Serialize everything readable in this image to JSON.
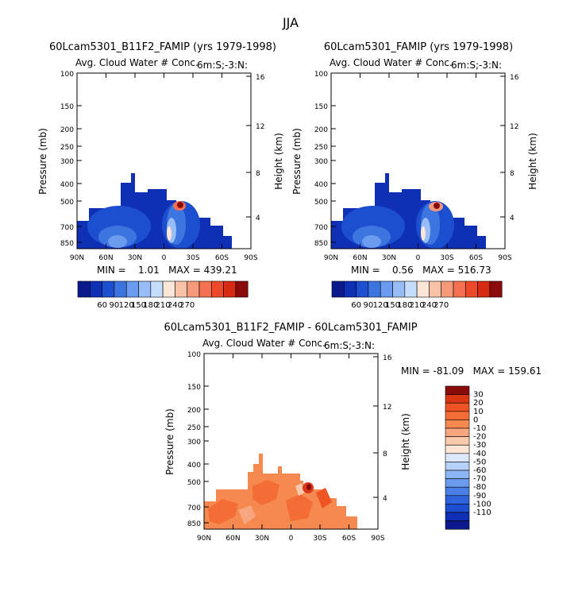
{
  "page_title": "JJA",
  "colors": {
    "main_scale": [
      "#0a1a8c",
      "#0f2fb4",
      "#1b4fd0",
      "#3d75e0",
      "#6a9bee",
      "#98bdf6",
      "#c6dcfb",
      "#fbe6d7",
      "#f9c2a8",
      "#f6997b",
      "#f37050",
      "#ee4a2a",
      "#d62a14",
      "#8b0b0b"
    ],
    "diff_scale": [
      "#0a1a8c",
      "#0f2fb4",
      "#1b4fd0",
      "#2e63dc",
      "#4a80e6",
      "#6a9bee",
      "#8cb5f4",
      "#b6d1fa",
      "#dce9fd",
      "#fde6d5",
      "#fbc9ab",
      "#f8a680",
      "#f6894f",
      "#f36d35",
      "#ef5522",
      "#dc3715",
      "#8b0b0b"
    ]
  },
  "chart_data": [
    {
      "type": "heatmap",
      "title": "60Lcam5301_B11F2_FAMIP (yrs 1979-1998)",
      "subtitle": "Avg. Cloud Water # Conc.",
      "subtitle_right": "6m:S;-3:N:",
      "ylabel": "Pressure (mb)",
      "y2label": "Height (km)",
      "xticks": [
        "90N",
        "60N",
        "30N",
        "0",
        "30S",
        "60S",
        "90S"
      ],
      "yticks": [
        "100",
        "150",
        "200",
        "250",
        "300",
        "400",
        "500",
        "700",
        "850"
      ],
      "y2ticks": [
        "16",
        "12",
        "8",
        "4"
      ],
      "stats": "MIN =    1.01   MAX = 439.21",
      "colorbar_labels": [
        "60",
        "90",
        "120",
        "150",
        "180",
        "210",
        "240",
        "270"
      ],
      "colorbar_position": "bottom"
    },
    {
      "type": "heatmap",
      "title": "60Lcam5301_FAMIP (yrs 1979-1998)",
      "subtitle": "Avg. Cloud Water # Conc.",
      "subtitle_right": "6m:S;-3:N:",
      "ylabel": "Pressure (mb)",
      "y2label": "Height (km)",
      "xticks": [
        "90N",
        "60N",
        "30N",
        "0",
        "30S",
        "60S",
        "90S"
      ],
      "yticks": [
        "100",
        "150",
        "200",
        "250",
        "300",
        "400",
        "500",
        "700",
        "850"
      ],
      "y2ticks": [
        "16",
        "12",
        "8",
        "4"
      ],
      "stats": "MIN =    0.56   MAX = 516.73",
      "colorbar_labels": [
        "60",
        "90",
        "120",
        "150",
        "180",
        "210",
        "240",
        "270"
      ],
      "colorbar_position": "bottom"
    },
    {
      "type": "heatmap",
      "title": "60Lcam5301_B11F2_FAMIP - 60Lcam5301_FAMIP",
      "subtitle": "Avg. Cloud Water # Conc.",
      "subtitle_right": "6m:S;-3:N:",
      "ylabel": "Pressure (mb)",
      "y2label": "Height (km)",
      "xticks": [
        "90N",
        "60N",
        "30N",
        "0",
        "30S",
        "60S",
        "90S"
      ],
      "yticks": [
        "100",
        "150",
        "200",
        "250",
        "300",
        "400",
        "500",
        "700",
        "850"
      ],
      "y2ticks": [
        "16",
        "12",
        "8",
        "4"
      ],
      "stats": "MIN = -81.09   MAX = 159.61",
      "colorbar_labels": [
        "30",
        "20",
        "10",
        "0",
        "-10",
        "-20",
        "-30",
        "-40",
        "-50",
        "-60",
        "-70",
        "-80",
        "-90",
        "-100",
        "-110"
      ],
      "colorbar_position": "right"
    }
  ]
}
